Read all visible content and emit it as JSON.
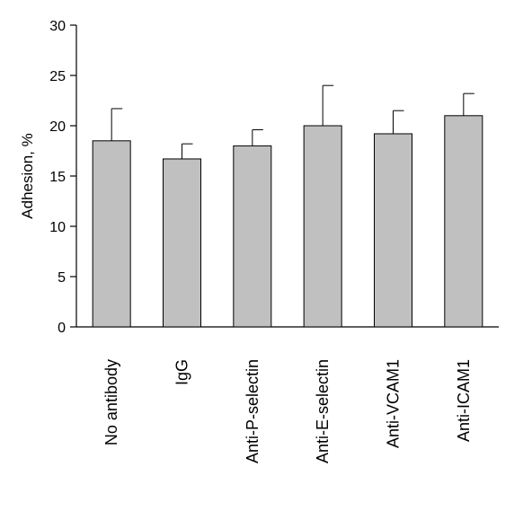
{
  "chart_data": {
    "type": "bar",
    "title": "",
    "xlabel": "",
    "ylabel": "Adhesion, %",
    "ylim": [
      0,
      30
    ],
    "yticks": [
      0,
      5,
      10,
      15,
      20,
      25,
      30
    ],
    "categories": [
      "No antibody",
      "IgG",
      "Anti-P-selectin",
      "Anti-E-selectin",
      "Anti-VCAM1",
      "Anti-ICAM1"
    ],
    "values": [
      18.5,
      16.7,
      18.0,
      20.0,
      19.2,
      21.0
    ],
    "error_upper": [
      3.2,
      1.5,
      1.6,
      4.0,
      2.3,
      2.2
    ],
    "bar_color": "#c0c0c0",
    "grid": false,
    "legend": "none"
  }
}
